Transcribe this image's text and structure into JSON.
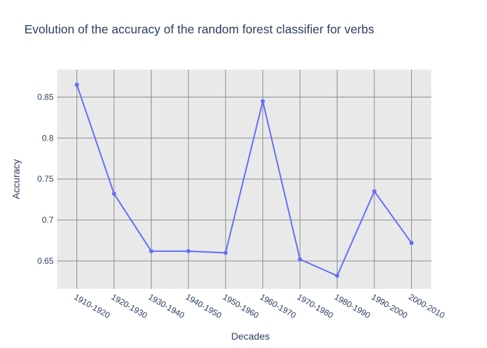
{
  "chart_data": {
    "type": "line",
    "title": "Evolution of the accuracy of the random forest classifier for verbs",
    "xlabel": "Decades",
    "ylabel": "Accuracy",
    "categories": [
      "1910-1920",
      "1920-1930",
      "1930-1940",
      "1940-1950",
      "1950-1960",
      "1960-1970",
      "1970-1980",
      "1980-1990",
      "1990-2000",
      "2000-2010"
    ],
    "values": [
      0.865,
      0.732,
      0.662,
      0.662,
      0.66,
      0.845,
      0.652,
      0.632,
      0.735,
      0.672
    ],
    "yticks": [
      0.65,
      0.7,
      0.75,
      0.8,
      0.85
    ],
    "ytick_labels": [
      "0.65",
      "0.7",
      "0.75",
      "0.8",
      "0.85"
    ],
    "ylim": [
      0.616,
      0.8835
    ],
    "grid": true,
    "colors": {
      "line": "#636efa",
      "plot_bg": "#e9e9e9",
      "grid": "#8c8c8c",
      "text": "#2a3f5f"
    }
  }
}
